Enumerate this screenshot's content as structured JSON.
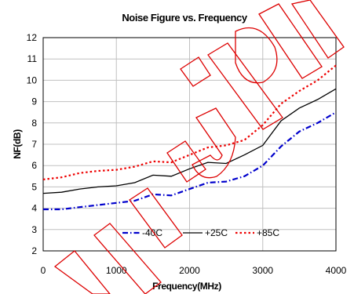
{
  "chart_data": {
    "type": "line",
    "title": "Noise Figure vs. Frequency",
    "xlabel": "Frequency(MHz)",
    "ylabel": "NF(dB)",
    "xlim": [
      0,
      4000
    ],
    "ylim": [
      2,
      12
    ],
    "xticks": [
      "0",
      "1000",
      "2000",
      "3000",
      "4000"
    ],
    "yticks": [
      "2",
      "3",
      "4",
      "5",
      "6",
      "7",
      "8",
      "9",
      "10",
      "11",
      "12"
    ],
    "grid": true,
    "legend_position": "bottom-right",
    "series": [
      {
        "name": "-40C",
        "color": "#0000cc",
        "dash": "dash-dot",
        "x": [
          0,
          250,
          500,
          750,
          1000,
          1250,
          1500,
          1750,
          2000,
          2250,
          2500,
          2750,
          3000,
          3250,
          3500,
          3750,
          4000
        ],
        "y": [
          3.95,
          3.95,
          4.05,
          4.15,
          4.25,
          4.35,
          4.65,
          4.6,
          4.9,
          5.2,
          5.25,
          5.5,
          6.0,
          6.9,
          7.6,
          8.0,
          8.5
        ]
      },
      {
        "name": "+25C",
        "color": "#000000",
        "dash": "solid",
        "x": [
          0,
          250,
          500,
          750,
          1000,
          1250,
          1500,
          1750,
          2000,
          2250,
          2500,
          2750,
          3000,
          3250,
          3500,
          3750,
          4000
        ],
        "y": [
          4.7,
          4.75,
          4.9,
          5.0,
          5.05,
          5.2,
          5.55,
          5.5,
          5.85,
          6.15,
          6.1,
          6.5,
          6.95,
          8.1,
          8.7,
          9.1,
          9.6
        ]
      },
      {
        "name": "+85C",
        "color": "#ee0000",
        "dash": "dotted",
        "x": [
          0,
          250,
          500,
          750,
          1000,
          1250,
          1500,
          1750,
          2000,
          2250,
          2500,
          2750,
          3000,
          3250,
          3500,
          3750,
          4000
        ],
        "y": [
          5.35,
          5.45,
          5.65,
          5.75,
          5.8,
          5.95,
          6.2,
          6.15,
          6.5,
          6.85,
          6.95,
          7.2,
          7.9,
          8.9,
          9.5,
          10.0,
          10.7
        ]
      }
    ]
  }
}
